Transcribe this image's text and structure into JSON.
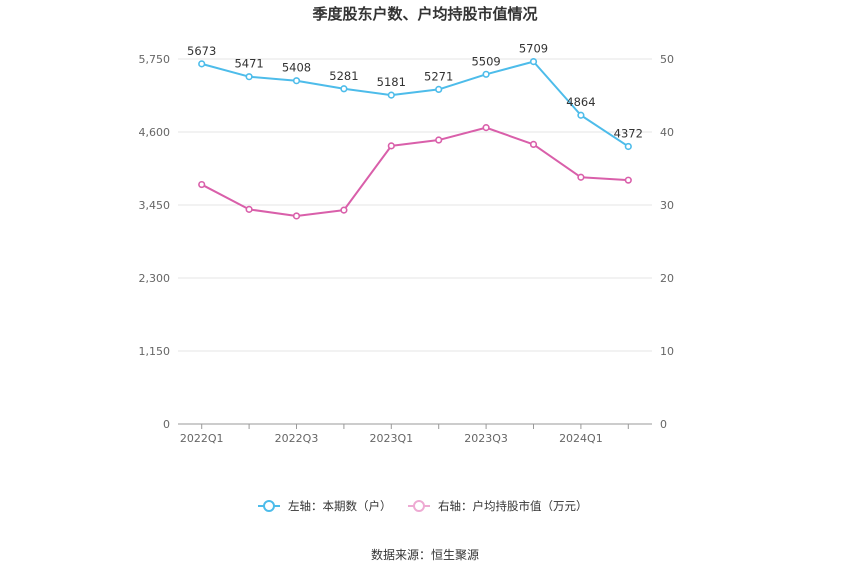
{
  "chart_data": {
    "type": "line",
    "title": "季度股东户数、户均持股市值情况",
    "x": [
      "2022Q1",
      "2022Q2",
      "2022Q3",
      "2022Q4",
      "2023Q1",
      "2023Q2",
      "2023Q3",
      "2023Q4",
      "2024Q1",
      "2024Q2"
    ],
    "x_tick_labels": [
      "2022Q1",
      "2022Q3",
      "2023Q1",
      "2023Q3",
      "2024Q1"
    ],
    "y_left": {
      "ticks": [
        "0",
        "1,150",
        "2,300",
        "3,450",
        "4,600",
        "5,750"
      ],
      "ylim": [
        0,
        5750
      ]
    },
    "y_right": {
      "ticks": [
        "0",
        "10",
        "20",
        "30",
        "40",
        "50"
      ],
      "ylim": [
        0,
        50
      ]
    },
    "grid": true,
    "legend_position": "bottom",
    "series": [
      {
        "name": "左轴：本期数（户）",
        "axis": "left",
        "color": "#4dbcea",
        "values": [
          5673,
          5471,
          5408,
          5281,
          5181,
          5271,
          5509,
          5709,
          4864,
          4372
        ],
        "labels": [
          "5673",
          "5471",
          "5408",
          "5281",
          "5181",
          "5271",
          "5509",
          "5709",
          "4864",
          "4372"
        ]
      },
      {
        "name": "右轴：户均持股市值（万元）",
        "axis": "right",
        "color": "#d95faa",
        "values": [
          32.8,
          29.4,
          28.5,
          29.3,
          38.1,
          38.9,
          40.6,
          38.3,
          33.8,
          33.4
        ]
      }
    ],
    "source": "数据来源：恒生聚源"
  }
}
